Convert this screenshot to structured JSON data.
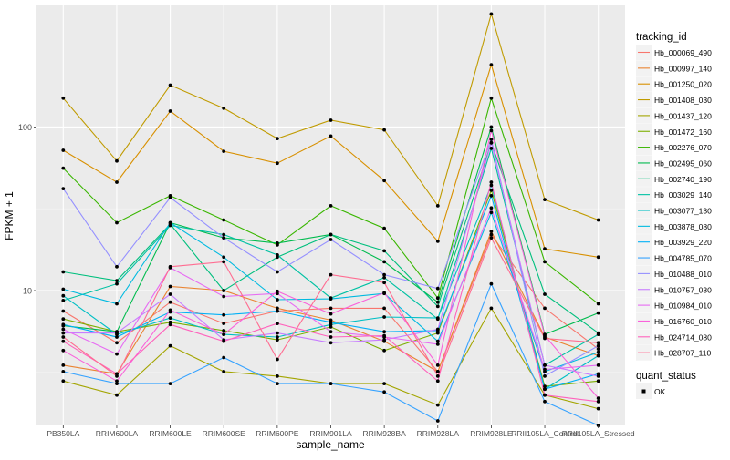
{
  "chart_data": {
    "type": "line",
    "xlabel": "sample_name",
    "ylabel": "FPKM + 1",
    "y_scale": "log10",
    "ylim": [
      1.5,
      560
    ],
    "y_ticks": [
      10,
      100
    ],
    "y_tick_labels": [
      "10",
      "100"
    ],
    "grid": true,
    "legend_position": "right",
    "categories": [
      "PB350LA",
      "RRIM600LA",
      "RRIM600LE",
      "RRIM600SE",
      "RRIM600PE",
      "RRIM901LA",
      "RRIM928BA",
      "RRIM928LA",
      "RRIM928LE",
      "RRII105LA_Control",
      "RRII105LA_Stressed"
    ],
    "category_labels": [
      "PB350LA",
      "RRIM600LA",
      "RRIM600LE",
      "RRIM600SE",
      "RRIM600PE",
      "RRIM901LA",
      "RRIM928BA",
      "RRIM928LA",
      "RRIM928LE",
      "RRII105LA_Control",
      "RRII105LA_Stressed"
    ],
    "legend_title": "tracking_id",
    "series": [
      {
        "name": "Hb_000069_490",
        "color": "#F8766D",
        "values": [
          7.5,
          4.8,
          8.5,
          6.3,
          7.5,
          7.8,
          7.8,
          3.2,
          22,
          7.8,
          4.4
        ]
      },
      {
        "name": "Hb_000997_140",
        "color": "#EA8331",
        "values": [
          3.5,
          3.1,
          10.6,
          10.0,
          7.8,
          6.6,
          4.9,
          3.2,
          23,
          5.2,
          4.0
        ]
      },
      {
        "name": "Hb_001250_020",
        "color": "#D89000",
        "values": [
          72,
          46,
          125,
          71,
          60,
          88,
          47,
          20,
          240,
          18,
          16
        ]
      },
      {
        "name": "Hb_001408_030",
        "color": "#C09B00",
        "values": [
          150,
          62,
          180,
          130,
          85,
          110,
          96,
          33,
          490,
          36,
          27
        ]
      },
      {
        "name": "Hb_001437_120",
        "color": "#A3A500",
        "values": [
          2.8,
          2.3,
          4.6,
          3.2,
          3.0,
          2.7,
          2.7,
          2.0,
          7.8,
          2.3,
          1.9
        ]
      },
      {
        "name": "Hb_001472_160",
        "color": "#7CAE00",
        "values": [
          6.7,
          5.6,
          6.4,
          5.7,
          5.0,
          6.0,
          4.3,
          5.5,
          41,
          2.6,
          2.8
        ]
      },
      {
        "name": "Hb_002276_070",
        "color": "#39B600",
        "values": [
          56,
          26,
          38,
          27,
          19,
          33,
          24,
          9,
          150,
          15,
          8.3
        ]
      },
      {
        "name": "Hb_002495_060",
        "color": "#00BB4E",
        "values": [
          6.1,
          5.6,
          26,
          21,
          19.5,
          22,
          15,
          8.5,
          100,
          5.4,
          7.3
        ]
      },
      {
        "name": "Hb_002740_190",
        "color": "#00BF7D",
        "values": [
          13,
          11.5,
          25.5,
          10,
          16,
          22,
          17.5,
          8,
          80,
          9.5,
          5.5
        ]
      },
      {
        "name": "Hb_003029_140",
        "color": "#00C1A3",
        "values": [
          8.7,
          11.0,
          25,
          22,
          16.5,
          9.0,
          12.0,
          6.7,
          74,
          3.5,
          5.4
        ]
      },
      {
        "name": "Hb_003077_130",
        "color": "#00BFC4",
        "values": [
          9.3,
          5.4,
          6.8,
          5.4,
          5.2,
          6.2,
          6.9,
          6.8,
          44,
          2.5,
          4.0
        ]
      },
      {
        "name": "Hb_003878_080",
        "color": "#00BAE0",
        "values": [
          10.2,
          8.3,
          26,
          16,
          8.8,
          8.9,
          9.6,
          4.9,
          30,
          3.2,
          4.2
        ]
      },
      {
        "name": "Hb_003929_220",
        "color": "#00B0F6",
        "values": [
          6.2,
          5.2,
          7.4,
          7.1,
          7.5,
          6.4,
          5.6,
          5.7,
          38,
          2.5,
          3.1
        ]
      },
      {
        "name": "Hb_004785_070",
        "color": "#35A2FF",
        "values": [
          3.2,
          2.7,
          2.7,
          3.9,
          2.7,
          2.7,
          2.4,
          1.6,
          11,
          2.1,
          1.5
        ]
      },
      {
        "name": "Hb_010488_010",
        "color": "#9590FF",
        "values": [
          42,
          14,
          37,
          21,
          13,
          20.5,
          12.5,
          10.3,
          84,
          3.0,
          4.6
        ]
      },
      {
        "name": "Hb_010757_030",
        "color": "#C77CFF",
        "values": [
          5.5,
          5.5,
          9.5,
          5.0,
          5.5,
          4.8,
          5.0,
          5.8,
          80,
          3.5,
          3.0
        ]
      },
      {
        "name": "Hb_010984_010",
        "color": "#E76BF3",
        "values": [
          5.8,
          4.1,
          13.8,
          9.2,
          9.6,
          5.6,
          5.2,
          4.7,
          32,
          3.3,
          3.5
        ]
      },
      {
        "name": "Hb_016760_010",
        "color": "#FA62DB",
        "values": [
          4.3,
          2.8,
          7.6,
          5.4,
          9.9,
          7.2,
          9.7,
          3.5,
          95,
          5.3,
          2.2
        ]
      },
      {
        "name": "Hb_024714_080",
        "color": "#FF62BC",
        "values": [
          4.9,
          3.1,
          6.2,
          4.9,
          6.3,
          5.2,
          5.3,
          2.8,
          46,
          2.3,
          2.1
        ]
      },
      {
        "name": "Hb_028707_110",
        "color": "#FF6C91",
        "values": [
          5.2,
          3.0,
          14,
          15,
          3.8,
          12.5,
          11.2,
          3.0,
          21,
          5.1,
          4.8
        ]
      }
    ],
    "quant_status": {
      "title": "quant_status",
      "entries": [
        "OK"
      ]
    }
  },
  "colors": {
    "panel_bg": "#EBEBEB",
    "grid_major": "#FFFFFF",
    "point": "#000000"
  }
}
